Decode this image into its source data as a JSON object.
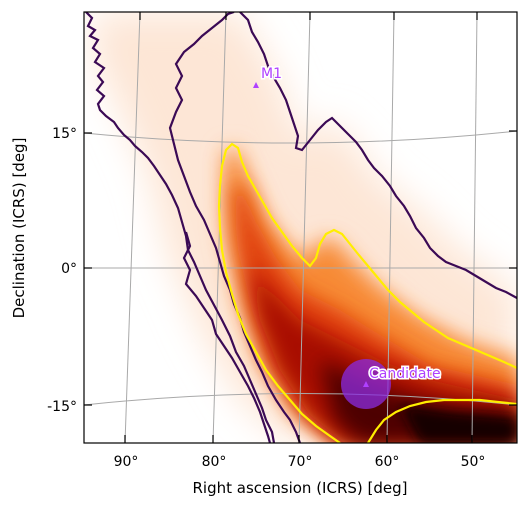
{
  "figure": {
    "xlabel": "Right ascension (ICRS) [deg]",
    "ylabel": "Declination (ICRS) [deg]"
  },
  "chart_data": {
    "type": "heatmap",
    "projection": "sky map (RA increases to the left)",
    "xlabel": "Right ascension (ICRS) [deg]",
    "ylabel": "Declination (ICRS) [deg]",
    "x_ticks": [
      {
        "value": 90,
        "label": "90°"
      },
      {
        "value": 80,
        "label": "80°"
      },
      {
        "value": 70,
        "label": "70°"
      },
      {
        "value": 60,
        "label": "60°"
      },
      {
        "value": 50,
        "label": "50°"
      }
    ],
    "y_ticks": [
      {
        "value": 15,
        "label": "15°"
      },
      {
        "value": 0,
        "label": "0°"
      },
      {
        "value": -15,
        "label": "-15°"
      }
    ],
    "xlim": [
      95,
      45
    ],
    "ylim": [
      -19,
      27.5
    ],
    "grid": true,
    "colormap": "gist_heat_r (white → orange → red → black)",
    "contours": [
      {
        "level": "outer credible region",
        "color": "#3b0a55"
      },
      {
        "level": "inner credible region",
        "color": "#ffee00"
      }
    ],
    "markers": [
      {
        "label": "M1",
        "ra": 75.3,
        "dec": 19.9,
        "color": "#b040ff",
        "halo": false
      },
      {
        "label": "Candidate",
        "ra": 62.2,
        "dec": -12.6,
        "color": "#b040ff",
        "halo": true,
        "halo_color": "#8a2be2"
      }
    ]
  }
}
